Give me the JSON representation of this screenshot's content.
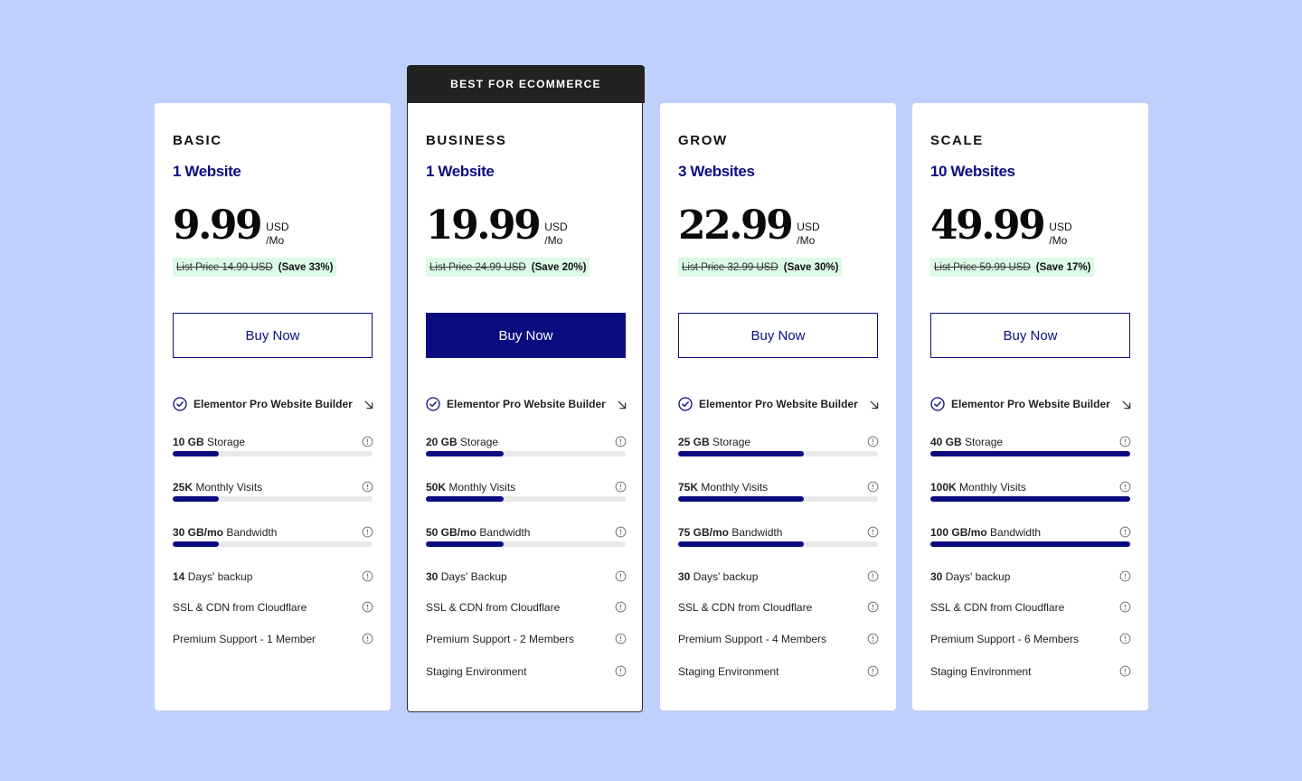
{
  "plans": [
    {
      "badge": "",
      "name": "BASIC",
      "sites": "1 Website",
      "price": "9.99",
      "currency": "USD",
      "period": "/Mo",
      "list_price": "List Price 14.99 USD",
      "save": "(Save 33%)",
      "buy_label": "Buy Now",
      "builder": "Elementor Pro Website Builder",
      "storage": {
        "value": "10 GB",
        "label": "Storage",
        "fill_fraction": 0.23
      },
      "visits": {
        "value": "25K",
        "label": "Monthly Visits",
        "fill_fraction": 0.23
      },
      "bandwidth": {
        "value": "30 GB/mo",
        "label": "Bandwidth",
        "fill_fraction": 0.23
      },
      "backup": {
        "value": "14",
        "label": "Days' backup"
      },
      "ssl": "SSL & CDN from Cloudflare",
      "support": "Premium Support - 1 Member",
      "staging": ""
    },
    {
      "badge": "BEST FOR ECOMMERCE",
      "name": "BUSINESS",
      "sites": "1 Website",
      "price": "19.99",
      "currency": "USD",
      "period": "/Mo",
      "list_price": "List Price 24.99 USD",
      "save": "(Save 20%)",
      "buy_label": "Buy Now",
      "builder": "Elementor Pro Website Builder",
      "storage": {
        "value": "20 GB",
        "label": "Storage",
        "fill_fraction": 0.39
      },
      "visits": {
        "value": "50K",
        "label": "Monthly Visits",
        "fill_fraction": 0.39
      },
      "bandwidth": {
        "value": "50 GB/mo",
        "label": "Bandwidth",
        "fill_fraction": 0.39
      },
      "backup": {
        "value": "30",
        "label": "Days' Backup"
      },
      "ssl": "SSL & CDN from Cloudflare",
      "support": "Premium Support - 2 Members",
      "staging": "Staging Environment"
    },
    {
      "badge": "",
      "name": "GROW",
      "sites": "3 Websites",
      "price": "22.99",
      "currency": "USD",
      "period": "/Mo",
      "list_price": "List Price 32.99 USD",
      "save": "(Save 30%)",
      "buy_label": "Buy Now",
      "builder": "Elementor Pro Website Builder",
      "storage": {
        "value": "25 GB",
        "label": "Storage",
        "fill_fraction": 0.63
      },
      "visits": {
        "value": "75K",
        "label": "Monthly Visits",
        "fill_fraction": 0.63
      },
      "bandwidth": {
        "value": "75 GB/mo",
        "label": "Bandwidth",
        "fill_fraction": 0.63
      },
      "backup": {
        "value": "30",
        "label": "Days' backup"
      },
      "ssl": "SSL & CDN from Cloudflare",
      "support": "Premium Support - 4 Members",
      "staging": "Staging Environment"
    },
    {
      "badge": "",
      "name": "SCALE",
      "sites": "10 Websites",
      "price": "49.99",
      "currency": "USD",
      "period": "/Mo",
      "list_price": "List Price 59.99 USD",
      "save": "(Save 17%)",
      "buy_label": "Buy Now",
      "builder": "Elementor Pro Website Builder",
      "storage": {
        "value": "40 GB",
        "label": "Storage",
        "fill_fraction": 1.0
      },
      "visits": {
        "value": "100K",
        "label": "Monthly Visits",
        "fill_fraction": 1.0
      },
      "bandwidth": {
        "value": "100 GB/mo",
        "label": "Bandwidth",
        "fill_fraction": 1.0
      },
      "backup": {
        "value": "30",
        "label": "Days' backup"
      },
      "ssl": "SSL & CDN from Cloudflare",
      "support": "Premium Support - 6 Members",
      "staging": "Staging Environment"
    }
  ],
  "colors": {
    "background": "#c0d0fc",
    "accent": "#0b0b80",
    "savings_bg": "#dcfae6",
    "badge_bg": "#222222"
  },
  "icons": {
    "builder_check": "check-circle-icon",
    "builder_expand": "arrow-down-right-icon",
    "feature_info": "info-icon"
  }
}
